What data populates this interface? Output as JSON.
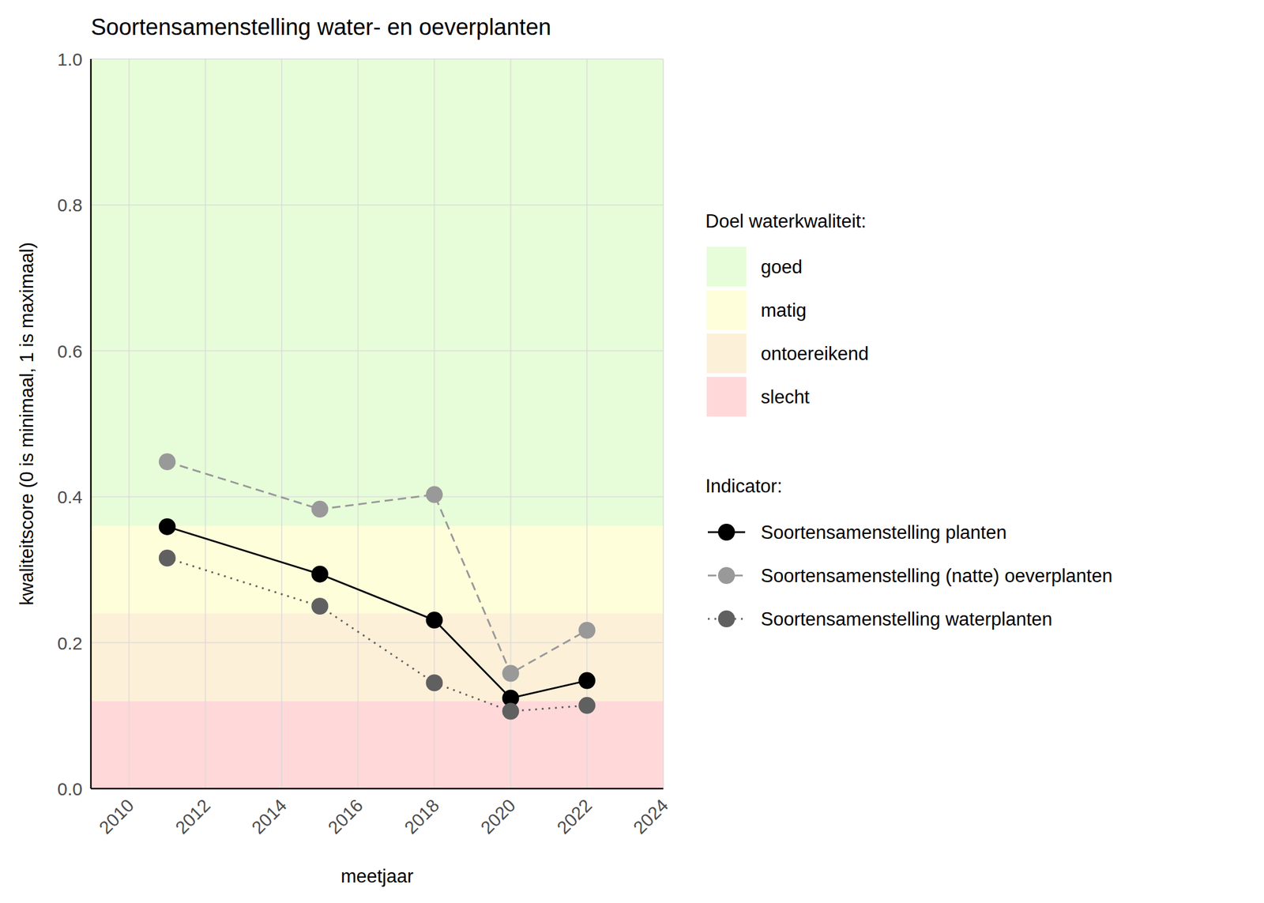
{
  "chart_data": {
    "type": "line",
    "title": "Soortensamenstelling water- en oeverplanten",
    "x_label": "meetjaar",
    "y_label": "kwaliteitscore (0 is minimaal, 1 is maximaal)",
    "x": [
      2011,
      2015,
      2018,
      2020,
      2022
    ],
    "xlim": [
      2009,
      2024
    ],
    "xticks": [
      2010,
      2012,
      2014,
      2016,
      2018,
      2020,
      2022,
      2024
    ],
    "ylim": [
      0,
      1
    ],
    "yticks": [
      {
        "value": 0,
        "label": "0.0"
      },
      0.2,
      0.4,
      0.6,
      0.8,
      {
        "value": 1,
        "label": "1.0"
      }
    ],
    "grid": true,
    "band_legend_title": "Doel waterkwaliteit:",
    "bands": [
      {
        "name": "goed",
        "from": 0.36,
        "to": 1,
        "color": "#e7fdd9"
      },
      {
        "name": "matig",
        "from": 0.24,
        "to": 0.36,
        "color": "#fffedb"
      },
      {
        "name": "ontoereikend",
        "from": 0.12,
        "to": 0.24,
        "color": "#fdf0d9"
      },
      {
        "name": "slecht",
        "from": 0,
        "to": 0.12,
        "color": "#ffd9da"
      }
    ],
    "series_legend_title": "Indicator:",
    "series": [
      {
        "name": "Soortensamenstelling planten",
        "color": "#000000",
        "line_style": "solid",
        "marker": "circle",
        "values": [
          0.359,
          0.294,
          0.231,
          0.124,
          0.148
        ]
      },
      {
        "name": "Soortensamenstelling (natte) oeverplanten",
        "color": "#999999",
        "line_style": "dashed",
        "marker": "circle",
        "values": [
          0.448,
          0.383,
          0.403,
          0.158,
          0.217
        ]
      },
      {
        "name": "Soortensamenstelling waterplanten",
        "color": "#606060",
        "line_style": "dotted",
        "marker": "circle",
        "values": [
          0.316,
          0.25,
          0.145,
          0.106,
          0.114
        ]
      }
    ]
  }
}
